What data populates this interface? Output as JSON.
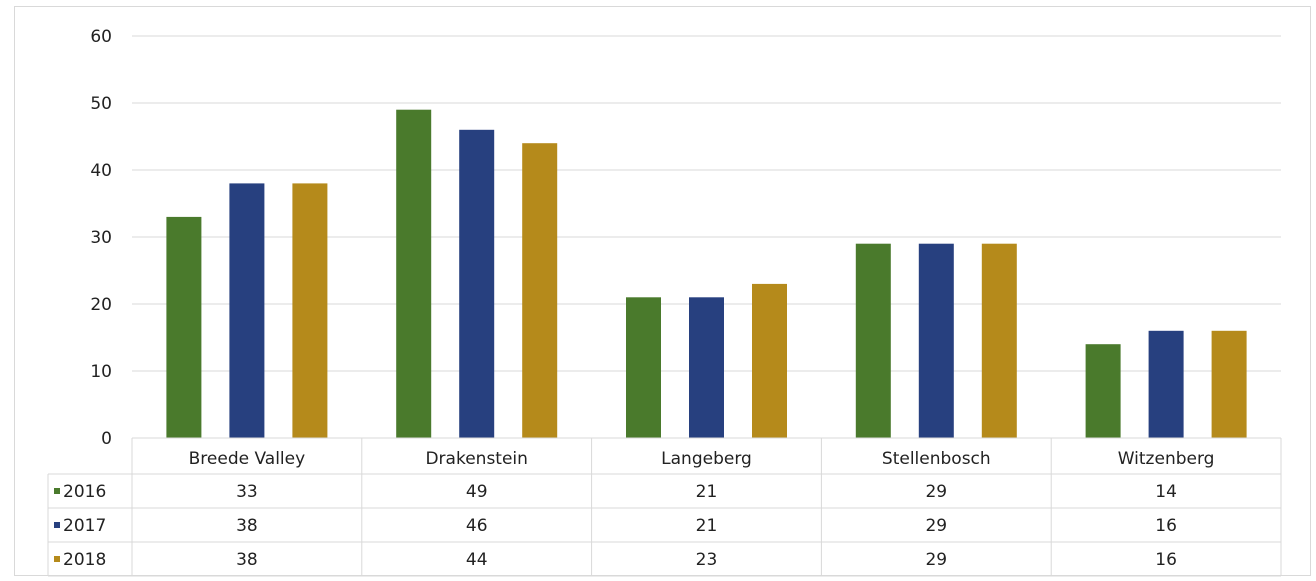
{
  "chart_data": {
    "type": "bar",
    "categories": [
      "Breede Valley",
      "Drakenstein",
      "Langeberg",
      "Stellenbosch",
      "Witzenberg"
    ],
    "series": [
      {
        "name": "2016",
        "values": [
          33,
          49,
          21,
          29,
          14
        ],
        "color": "#4a7a2c"
      },
      {
        "name": "2017",
        "values": [
          38,
          46,
          21,
          29,
          16
        ],
        "color": "#27407f"
      },
      {
        "name": "2018",
        "values": [
          38,
          44,
          23,
          29,
          16
        ],
        "color": "#b58a1b"
      }
    ],
    "ylim": [
      0,
      60
    ],
    "yticks": [
      0,
      10,
      20,
      30,
      40,
      50,
      60
    ],
    "grid": true,
    "legend": "data-table",
    "data_table": true
  }
}
